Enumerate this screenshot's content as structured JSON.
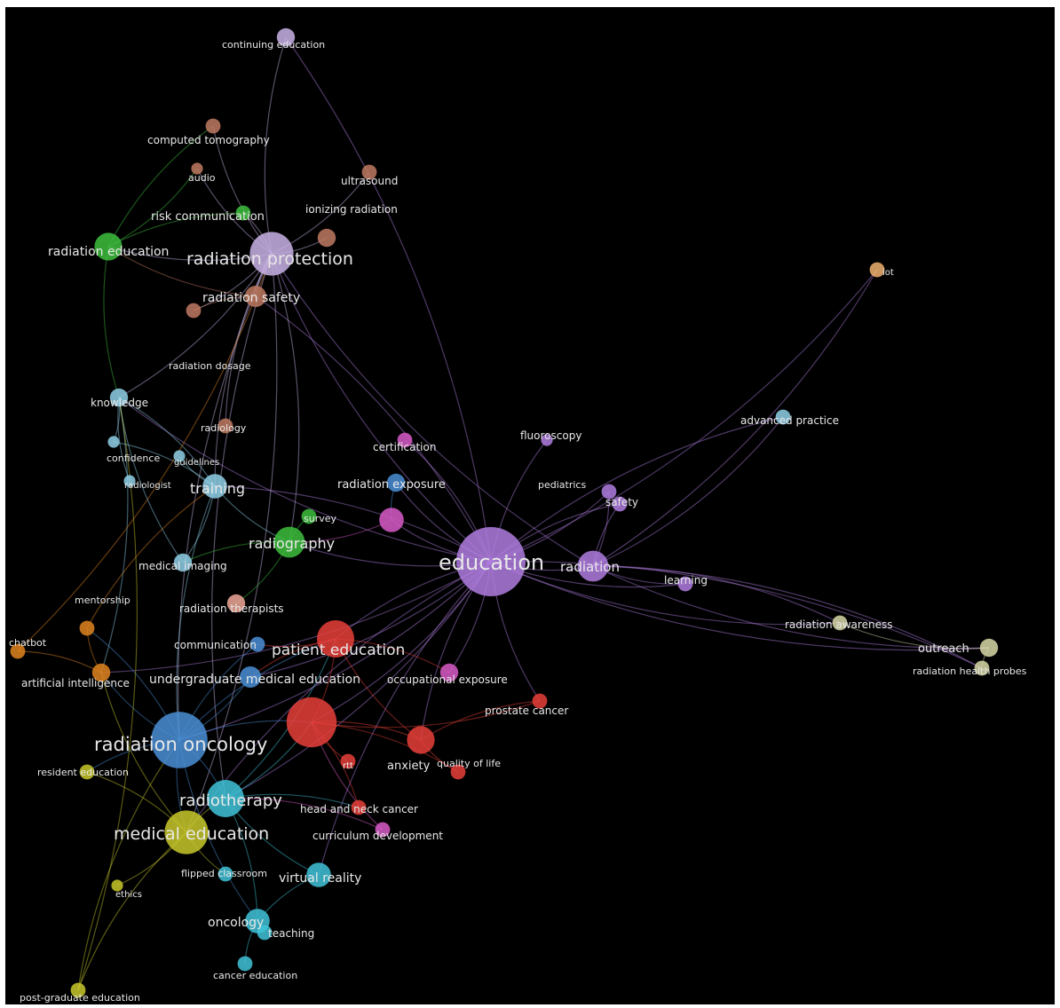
{
  "network": {
    "background": "#000000",
    "clusters": [
      {
        "id": "purple",
        "color": "#b07ee0"
      },
      {
        "id": "lavender",
        "color": "#c9b3e6"
      },
      {
        "id": "red",
        "color": "#e8403a"
      },
      {
        "id": "blue",
        "color": "#4a8fd6"
      },
      {
        "id": "cyan",
        "color": "#3fc3d8"
      },
      {
        "id": "green",
        "color": "#3dbf3d"
      },
      {
        "id": "yellow",
        "color": "#c8c82c"
      },
      {
        "id": "brown",
        "color": "#c07a62"
      },
      {
        "id": "orange",
        "color": "#e0841e"
      },
      {
        "id": "pink",
        "color": "#d85ac8"
      },
      {
        "id": "skyblue",
        "color": "#8fd0e8"
      },
      {
        "id": "pale",
        "color": "#d8d8a8"
      },
      {
        "id": "salmon",
        "color": "#f0a898"
      },
      {
        "id": "peach",
        "color": "#f0b070"
      }
    ],
    "nodes": [
      {
        "id": "education",
        "label": "education",
        "weight": 10,
        "cluster": "purple"
      },
      {
        "id": "radiation",
        "label": "radiation",
        "weight": 4,
        "cluster": "purple"
      },
      {
        "id": "learning",
        "label": "learning",
        "weight": 1.5,
        "cluster": "purple"
      },
      {
        "id": "safety",
        "label": "safety",
        "weight": 1.5,
        "cluster": "purple"
      },
      {
        "id": "pediatrics",
        "label": "pediatrics",
        "weight": 1.5,
        "cluster": "purple"
      },
      {
        "id": "fluoroscopy",
        "label": "fluoroscopy",
        "weight": 1,
        "cluster": "purple"
      },
      {
        "id": "radiation_protection",
        "label": "radiation protection",
        "weight": 6,
        "cluster": "lavender"
      },
      {
        "id": "continuing_education",
        "label": "continuing education",
        "weight": 2,
        "cluster": "lavender"
      },
      {
        "id": "patient_education",
        "label": "patient education",
        "weight": 5,
        "cluster": "red"
      },
      {
        "id": "anxiety",
        "label": "anxiety",
        "weight": 3.5,
        "cluster": "red"
      },
      {
        "id": "quality_of_life",
        "label": "quality of life",
        "weight": 1.5,
        "cluster": "red"
      },
      {
        "id": "prostate_cancer",
        "label": "prostate cancer",
        "weight": 1.5,
        "cluster": "red"
      },
      {
        "id": "head_and_neck_cancer",
        "label": "head and neck cancer",
        "weight": 1.5,
        "cluster": "red"
      },
      {
        "id": "rtt",
        "label": "rtt",
        "weight": 1.5,
        "cluster": "red"
      },
      {
        "id": "red_hub",
        "label": "",
        "weight": 7,
        "cluster": "red"
      },
      {
        "id": "radiation_oncology",
        "label": "radiation oncology",
        "weight": 8,
        "cluster": "blue"
      },
      {
        "id": "undergraduate_medical_education",
        "label": "undergraduate medical education",
        "weight": 2.5,
        "cluster": "blue"
      },
      {
        "id": "radiation_exposure",
        "label": "radiation exposure",
        "weight": 2,
        "cluster": "blue"
      },
      {
        "id": "communication",
        "label": "communication",
        "weight": 1.5,
        "cluster": "blue"
      },
      {
        "id": "radiotherapy",
        "label": "radiotherapy",
        "weight": 5,
        "cluster": "cyan"
      },
      {
        "id": "virtual_reality",
        "label": "virtual reality",
        "weight": 3,
        "cluster": "cyan"
      },
      {
        "id": "oncology",
        "label": "oncology",
        "weight": 3,
        "cluster": "cyan"
      },
      {
        "id": "teaching",
        "label": "teaching",
        "weight": 1.5,
        "cluster": "cyan"
      },
      {
        "id": "cancer_education",
        "label": "cancer education",
        "weight": 1.5,
        "cluster": "cyan"
      },
      {
        "id": "flipped_classroom",
        "label": "flipped classroom",
        "weight": 1.5,
        "cluster": "cyan"
      },
      {
        "id": "radiography",
        "label": "radiography",
        "weight": 4,
        "cluster": "green"
      },
      {
        "id": "radiation_education",
        "label": "radiation education",
        "weight": 3.5,
        "cluster": "green"
      },
      {
        "id": "risk_communication",
        "label": "risk communication",
        "weight": 1.5,
        "cluster": "green"
      },
      {
        "id": "survey",
        "label": "survey",
        "weight": 1.5,
        "cluster": "green"
      },
      {
        "id": "medical_education",
        "label": "medical education",
        "weight": 6,
        "cluster": "yellow"
      },
      {
        "id": "resident_education",
        "label": "resident education",
        "weight": 1.5,
        "cluster": "yellow"
      },
      {
        "id": "post_graduate_education",
        "label": "post-graduate education",
        "weight": 1.5,
        "cluster": "yellow"
      },
      {
        "id": "ethics",
        "label": "ethics",
        "weight": 1,
        "cluster": "yellow"
      },
      {
        "id": "radiation_safety",
        "label": "radiation safety",
        "weight": 2.5,
        "cluster": "brown"
      },
      {
        "id": "computed_tomography",
        "label": "computed tomography",
        "weight": 1.5,
        "cluster": "brown"
      },
      {
        "id": "ultrasound",
        "label": "ultrasound",
        "weight": 1.5,
        "cluster": "brown"
      },
      {
        "id": "ionizing_radiation",
        "label": "ionizing radiation",
        "weight": 2,
        "cluster": "brown"
      },
      {
        "id": "radiation_dosage",
        "label": "radiation dosage",
        "weight": 1.5,
        "cluster": "brown"
      },
      {
        "id": "radiology",
        "label": "radiology",
        "weight": 1.5,
        "cluster": "brown"
      },
      {
        "id": "audio",
        "label": "audio",
        "weight": 1,
        "cluster": "brown"
      },
      {
        "id": "artificial_intelligence",
        "label": "artificial intelligence",
        "weight": 2,
        "cluster": "orange"
      },
      {
        "id": "chatbot",
        "label": "chatbot",
        "weight": 1.5,
        "cluster": "orange"
      },
      {
        "id": "mentorship",
        "label": "mentorship",
        "weight": 1.5,
        "cluster": "orange"
      },
      {
        "id": "occupational_exposure",
        "label": "occupational exposure",
        "weight": 2,
        "cluster": "pink"
      },
      {
        "id": "curriculum_development",
        "label": "curriculum development",
        "weight": 1.5,
        "cluster": "pink"
      },
      {
        "id": "certification",
        "label": "certification",
        "weight": 1.5,
        "cluster": "pink"
      },
      {
        "id": "pink_hub",
        "label": "",
        "weight": 3,
        "cluster": "pink"
      },
      {
        "id": "training",
        "label": "training",
        "weight": 3,
        "cluster": "skyblue"
      },
      {
        "id": "knowledge",
        "label": "knowledge",
        "weight": 2,
        "cluster": "skyblue"
      },
      {
        "id": "medical_imaging",
        "label": "medical imaging",
        "weight": 2,
        "cluster": "skyblue"
      },
      {
        "id": "advanced_practice",
        "label": "advanced practice",
        "weight": 1.5,
        "cluster": "skyblue"
      },
      {
        "id": "confidence",
        "label": "confidence",
        "weight": 1,
        "cluster": "skyblue"
      },
      {
        "id": "guidelines",
        "label": "guidelines",
        "weight": 1,
        "cluster": "skyblue"
      },
      {
        "id": "radiologist",
        "label": "radiologist",
        "weight": 1,
        "cluster": "skyblue"
      },
      {
        "id": "outreach",
        "label": "outreach",
        "weight": 2,
        "cluster": "pale"
      },
      {
        "id": "radiation_health_probes",
        "label": "radiation health probes",
        "weight": 1.5,
        "cluster": "pale"
      },
      {
        "id": "radiation_awareness",
        "label": "radiation awareness",
        "weight": 1.5,
        "cluster": "pale"
      },
      {
        "id": "radiation_therapists",
        "label": "radiation therapists",
        "weight": 2,
        "cluster": "salmon"
      },
      {
        "id": "iot",
        "label": "iot",
        "weight": 1.5,
        "cluster": "peach"
      }
    ],
    "edges": [
      [
        "education",
        "radiation"
      ],
      [
        "education",
        "radiation_protection"
      ],
      [
        "education",
        "patient_education"
      ],
      [
        "education",
        "radiation_oncology"
      ],
      [
        "education",
        "medical_education"
      ],
      [
        "education",
        "radiotherapy"
      ],
      [
        "education",
        "outreach"
      ],
      [
        "education",
        "radiation_health_probes"
      ],
      [
        "education",
        "iot"
      ],
      [
        "education",
        "advanced_practice"
      ],
      [
        "education",
        "learning"
      ],
      [
        "education",
        "safety"
      ],
      [
        "education",
        "pediatrics"
      ],
      [
        "education",
        "fluoroscopy"
      ],
      [
        "education",
        "radiation_awareness"
      ],
      [
        "education",
        "radiography"
      ],
      [
        "education",
        "training"
      ],
      [
        "education",
        "knowledge"
      ],
      [
        "education",
        "continuing_education"
      ],
      [
        "education",
        "red_hub"
      ],
      [
        "education",
        "anxiety"
      ],
      [
        "education",
        "occupational_exposure"
      ],
      [
        "education",
        "prostate_cancer"
      ],
      [
        "education",
        "radiation_exposure"
      ],
      [
        "education",
        "certification"
      ],
      [
        "education",
        "pink_hub"
      ],
      [
        "education",
        "virtual_reality"
      ],
      [
        "education",
        "artificial_intelligence"
      ],
      [
        "education",
        "radiation_safety"
      ],
      [
        "education",
        "undergraduate_medical_education"
      ],
      [
        "radiation",
        "outreach"
      ],
      [
        "radiation",
        "radiation_health_probes"
      ],
      [
        "radiation",
        "learning"
      ],
      [
        "radiation",
        "safety"
      ],
      [
        "radiation",
        "pediatrics"
      ],
      [
        "radiation",
        "radiation_awareness"
      ],
      [
        "radiation",
        "advanced_practice"
      ],
      [
        "radiation",
        "radiation_protection"
      ],
      [
        "radiation",
        "iot"
      ],
      [
        "radiation_protection",
        "continuing_education"
      ],
      [
        "radiation_protection",
        "radiation_safety"
      ],
      [
        "radiation_protection",
        "radiation_education"
      ],
      [
        "radiation_protection",
        "risk_communication"
      ],
      [
        "radiation_protection",
        "computed_tomography"
      ],
      [
        "radiation_protection",
        "ionizing_radiation"
      ],
      [
        "radiation_protection",
        "knowledge"
      ],
      [
        "radiation_protection",
        "training"
      ],
      [
        "radiation_protection",
        "radiography"
      ],
      [
        "radiation_protection",
        "radiation_oncology"
      ],
      [
        "radiation_protection",
        "radiation_dosage"
      ],
      [
        "radiation_protection",
        "ultrasound"
      ],
      [
        "radiation_protection",
        "audio"
      ],
      [
        "radiation_protection",
        "radiology"
      ],
      [
        "radiation_protection",
        "medical_education"
      ],
      [
        "radiation_protection",
        "radiotherapy"
      ],
      [
        "radiation_safety",
        "radiation_education"
      ],
      [
        "radiation_safety",
        "radiation_dosage"
      ],
      [
        "radiation_education",
        "risk_communication"
      ],
      [
        "radiation_education",
        "knowledge"
      ],
      [
        "radiation_education",
        "computed_tomography"
      ],
      [
        "radiation_education",
        "audio"
      ],
      [
        "knowledge",
        "confidence"
      ],
      [
        "knowledge",
        "radiologist"
      ],
      [
        "knowledge",
        "training"
      ],
      [
        "knowledge",
        "medical_imaging"
      ],
      [
        "knowledge",
        "artificial_intelligence"
      ],
      [
        "training",
        "radiography"
      ],
      [
        "training",
        "medical_imaging"
      ],
      [
        "training",
        "radiation_oncology"
      ],
      [
        "training",
        "guidelines"
      ],
      [
        "training",
        "confidence"
      ],
      [
        "radiography",
        "survey"
      ],
      [
        "radiography",
        "medical_imaging"
      ],
      [
        "radiography",
        "radiation_therapists"
      ],
      [
        "radiation_oncology",
        "medical_education"
      ],
      [
        "radiation_oncology",
        "radiotherapy"
      ],
      [
        "radiation_oncology",
        "resident_education"
      ],
      [
        "radiation_oncology",
        "red_hub"
      ],
      [
        "radiation_oncology",
        "undergraduate_medical_education"
      ],
      [
        "radiation_oncology",
        "artificial_intelligence"
      ],
      [
        "radiation_oncology",
        "mentorship"
      ],
      [
        "radiation_oncology",
        "patient_education"
      ],
      [
        "radiation_oncology",
        "oncology"
      ],
      [
        "radiation_oncology",
        "communication"
      ],
      [
        "medical_education",
        "post_graduate_education"
      ],
      [
        "medical_education",
        "ethics"
      ],
      [
        "medical_education",
        "flipped_classroom"
      ],
      [
        "medical_education",
        "radiotherapy"
      ],
      [
        "medical_education",
        "resident_education"
      ],
      [
        "medical_education",
        "artificial_intelligence"
      ],
      [
        "radiotherapy",
        "virtual_reality"
      ],
      [
        "radiotherapy",
        "oncology"
      ],
      [
        "radiotherapy",
        "red_hub"
      ],
      [
        "radiotherapy",
        "head_and_neck_cancer"
      ],
      [
        "radiotherapy",
        "patient_education"
      ],
      [
        "oncology",
        "teaching"
      ],
      [
        "oncology",
        "cancer_education"
      ],
      [
        "oncology",
        "virtual_reality"
      ],
      [
        "red_hub",
        "patient_education"
      ],
      [
        "red_hub",
        "anxiety"
      ],
      [
        "red_hub",
        "rtt"
      ],
      [
        "red_hub",
        "head_and_neck_cancer"
      ],
      [
        "red_hub",
        "prostate_cancer"
      ],
      [
        "red_hub",
        "quality_of_life"
      ],
      [
        "patient_education",
        "anxiety"
      ],
      [
        "patient_education",
        "occupational_exposure"
      ],
      [
        "patient_education",
        "undergraduate_medical_education"
      ],
      [
        "patient_education",
        "communication"
      ],
      [
        "anxiety",
        "quality_of_life"
      ],
      [
        "anxiety",
        "prostate_cancer"
      ],
      [
        "artificial_intelligence",
        "chatbot"
      ],
      [
        "artificial_intelligence",
        "mentorship"
      ],
      [
        "curriculum_development",
        "radiotherapy"
      ],
      [
        "curriculum_development",
        "red_hub"
      ],
      [
        "radiation_exposure",
        "pink_hub"
      ],
      [
        "pink_hub",
        "radiography"
      ],
      [
        "outreach",
        "radiation_health_probes"
      ],
      [
        "outreach",
        "radiation_awareness"
      ],
      [
        "post_graduate_education",
        "knowledge"
      ],
      [
        "post_graduate_education",
        "radiation_oncology"
      ],
      [
        "chatbot",
        "radiation_protection"
      ],
      [
        "mentorship",
        "training"
      ]
    ]
  }
}
